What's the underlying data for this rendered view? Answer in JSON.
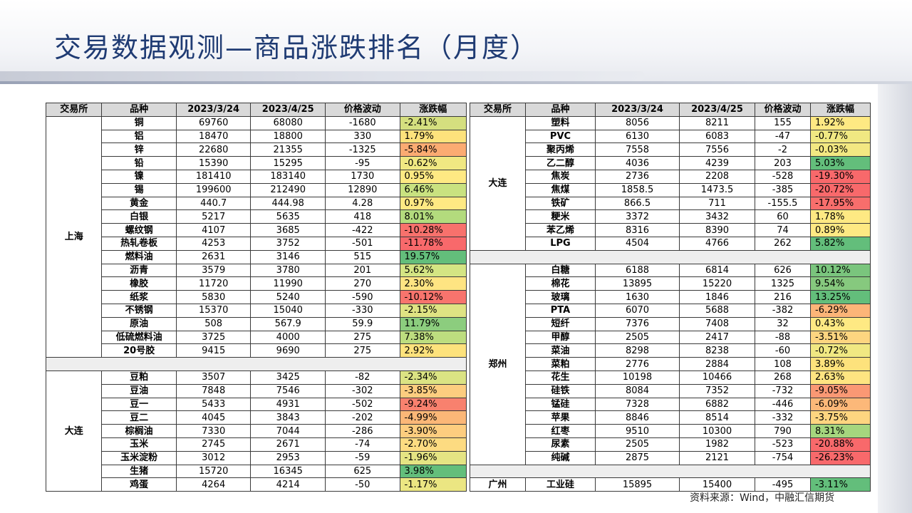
{
  "title": "交易数据观测—商品涨跌排名（月度）",
  "source": "资料来源：Wind，中融汇信期货",
  "headers": [
    "交易所",
    "品种",
    "2023/3/24",
    "2023/4/25",
    "价格波动",
    "涨跌幅"
  ],
  "left": {
    "groups": [
      {
        "exchange": "上海",
        "rows": [
          {
            "p": "铜",
            "a": "69760",
            "b": "68080",
            "d": "-1680",
            "c": "-2.41%",
            "bg": "#d5df7f"
          },
          {
            "p": "铝",
            "a": "18470",
            "b": "18800",
            "d": "330",
            "c": "1.79%",
            "bg": "#fde27c"
          },
          {
            "p": "锌",
            "a": "22680",
            "b": "21355",
            "d": "-1325",
            "c": "-5.84%",
            "bg": "#fbab72"
          },
          {
            "p": "铅",
            "a": "15390",
            "b": "15295",
            "d": "-95",
            "c": "-0.62%",
            "bg": "#f0e882"
          },
          {
            "p": "镍",
            "a": "181410",
            "b": "183140",
            "d": "1730",
            "c": "0.95%",
            "bg": "#fee983"
          },
          {
            "p": "锡",
            "a": "199600",
            "b": "212490",
            "d": "12890",
            "c": "6.46%",
            "bg": "#c9e280"
          },
          {
            "p": "黄金",
            "a": "440.7",
            "b": "444.98",
            "d": "4.28",
            "c": "0.97%",
            "bg": "#fee983"
          },
          {
            "p": "白银",
            "a": "5217",
            "b": "5635",
            "d": "418",
            "c": "8.01%",
            "bg": "#b3db7d"
          },
          {
            "p": "螺纹钢",
            "a": "4107",
            "b": "3685",
            "d": "-422",
            "c": "-10.28%",
            "bg": "#f8716c"
          },
          {
            "p": "热轧卷板",
            "a": "4253",
            "b": "3752",
            "d": "-501",
            "c": "-11.78%",
            "bg": "#f8696b"
          },
          {
            "p": "燃料油",
            "a": "2631",
            "b": "3146",
            "d": "515",
            "c": "19.57%",
            "bg": "#63be7b"
          },
          {
            "p": "沥青",
            "a": "3579",
            "b": "3780",
            "d": "201",
            "c": "5.62%",
            "bg": "#d4e583"
          },
          {
            "p": "橡胶",
            "a": "11720",
            "b": "11990",
            "d": "270",
            "c": "2.30%",
            "bg": "#fee482"
          },
          {
            "p": "纸浆",
            "a": "5830",
            "b": "5240",
            "d": "-590",
            "c": "-10.12%",
            "bg": "#f8746d"
          },
          {
            "p": "不锈钢",
            "a": "15370",
            "b": "15040",
            "d": "-330",
            "c": "-2.15%",
            "bg": "#dfe383"
          },
          {
            "p": "原油",
            "a": "508",
            "b": "567.9",
            "d": "59.9",
            "c": "11.79%",
            "bg": "#8ccd7e"
          },
          {
            "p": "低硫燃料油",
            "a": "3725",
            "b": "4000",
            "d": "275",
            "c": "7.38%",
            "bg": "#bddd7f"
          },
          {
            "p": "20号胶",
            "a": "9415",
            "b": "9690",
            "d": "275",
            "c": "2.92%",
            "bg": "#fde27c"
          }
        ]
      },
      {
        "exchange": "大连",
        "rows": [
          {
            "p": "豆粕",
            "a": "3507",
            "b": "3425",
            "d": "-82",
            "c": "-2.34%",
            "bg": "#dbe383"
          },
          {
            "p": "豆油",
            "a": "7848",
            "b": "7546",
            "d": "-302",
            "c": "-3.85%",
            "bg": "#fdcd7f"
          },
          {
            "p": "豆一",
            "a": "5433",
            "b": "4931",
            "d": "-502",
            "c": "-9.24%",
            "bg": "#f8816e"
          },
          {
            "p": "豆二",
            "a": "4045",
            "b": "3843",
            "d": "-202",
            "c": "-4.99%",
            "bg": "#fbb777"
          },
          {
            "p": "棕榈油",
            "a": "7330",
            "b": "7044",
            "d": "-286",
            "c": "-3.90%",
            "bg": "#fdcd7f"
          },
          {
            "p": "玉米",
            "a": "2745",
            "b": "2671",
            "d": "-74",
            "c": "-2.70%",
            "bg": "#fddb81"
          },
          {
            "p": "玉米淀粉",
            "a": "3012",
            "b": "2953",
            "d": "-59",
            "c": "-1.96%",
            "bg": "#e5e483"
          },
          {
            "p": "生猪",
            "a": "15720",
            "b": "16345",
            "d": "625",
            "c": "3.98%",
            "bg": "#63be7b"
          },
          {
            "p": "鸡蛋",
            "a": "4264",
            "b": "4214",
            "d": "-50",
            "c": "-1.17%",
            "bg": "#ebe682"
          }
        ]
      }
    ]
  },
  "right": {
    "groups": [
      {
        "exchange": "大连",
        "rows": [
          {
            "p": "塑料",
            "a": "8056",
            "b": "8211",
            "d": "155",
            "c": "1.92%",
            "bg": "#fee983"
          },
          {
            "p": "PVC",
            "a": "6130",
            "b": "6083",
            "d": "-47",
            "c": "-0.77%",
            "bg": "#f0e882"
          },
          {
            "p": "聚丙烯",
            "a": "7558",
            "b": "7556",
            "d": "-2",
            "c": "-0.03%",
            "bg": "#f3e882"
          },
          {
            "p": "乙二醇",
            "a": "4036",
            "b": "4239",
            "d": "203",
            "c": "5.03%",
            "bg": "#63be7b"
          },
          {
            "p": "焦炭",
            "a": "2736",
            "b": "2208",
            "d": "-528",
            "c": "-19.30%",
            "bg": "#f8696b"
          },
          {
            "p": "焦煤",
            "a": "1858.5",
            "b": "1473.5",
            "d": "-385",
            "c": "-20.72%",
            "bg": "#f8696b"
          },
          {
            "p": "铁矿",
            "a": "866.5",
            "b": "711",
            "d": "-155.5",
            "c": "-17.95%",
            "bg": "#f86e6c"
          },
          {
            "p": "粳米",
            "a": "3372",
            "b": "3432",
            "d": "60",
            "c": "1.78%",
            "bg": "#fee983"
          },
          {
            "p": "苯乙烯",
            "a": "8316",
            "b": "8390",
            "d": "74",
            "c": "0.89%",
            "bg": "#fee983"
          },
          {
            "p": "LPG",
            "a": "4504",
            "b": "4766",
            "d": "262",
            "c": "5.82%",
            "bg": "#63be7b"
          }
        ]
      },
      {
        "exchange": "郑州",
        "rows": [
          {
            "p": "白糖",
            "a": "6188",
            "b": "6814",
            "d": "626",
            "c": "10.12%",
            "bg": "#7ac57d"
          },
          {
            "p": "棉花",
            "a": "13895",
            "b": "15220",
            "d": "1325",
            "c": "9.54%",
            "bg": "#86c97e"
          },
          {
            "p": "玻璃",
            "a": "1630",
            "b": "1846",
            "d": "216",
            "c": "13.25%",
            "bg": "#63be7b"
          },
          {
            "p": "PTA",
            "a": "6070",
            "b": "5688",
            "d": "-382",
            "c": "-6.29%",
            "bg": "#fcb578"
          },
          {
            "p": "短纤",
            "a": "7376",
            "b": "7408",
            "d": "32",
            "c": "0.43%",
            "bg": "#fee983"
          },
          {
            "p": "甲醇",
            "a": "2505",
            "b": "2417",
            "d": "-88",
            "c": "-3.51%",
            "bg": "#fdd580"
          },
          {
            "p": "菜油",
            "a": "8298",
            "b": "8238",
            "d": "-60",
            "c": "-0.72%",
            "bg": "#f0e882"
          },
          {
            "p": "菜粕",
            "a": "2776",
            "b": "2884",
            "d": "108",
            "c": "3.89%",
            "bg": "#fde27c"
          },
          {
            "p": "花生",
            "a": "10198",
            "b": "10466",
            "d": "268",
            "c": "2.63%",
            "bg": "#fee481"
          },
          {
            "p": "硅铁",
            "a": "8084",
            "b": "7352",
            "d": "-732",
            "c": "-9.05%",
            "bg": "#fa9874"
          },
          {
            "p": "锰硅",
            "a": "7328",
            "b": "6882",
            "d": "-446",
            "c": "-6.09%",
            "bg": "#fcb879"
          },
          {
            "p": "苹果",
            "a": "8846",
            "b": "8514",
            "d": "-332",
            "c": "-3.75%",
            "bg": "#fdd580"
          },
          {
            "p": "红枣",
            "a": "9510",
            "b": "10300",
            "d": "790",
            "c": "8.31%",
            "bg": "#a5d67e"
          },
          {
            "p": "尿素",
            "a": "2505",
            "b": "1982",
            "d": "-523",
            "c": "-20.88%",
            "bg": "#f8696b"
          },
          {
            "p": "纯碱",
            "a": "2875",
            "b": "2121",
            "d": "-754",
            "c": "-26.23%",
            "bg": "#f8696b"
          }
        ]
      },
      {
        "exchange": "广州",
        "rows": [
          {
            "p": "工业硅",
            "a": "15895",
            "b": "15400",
            "d": "-495",
            "c": "-3.11%",
            "bg": "#63be7b"
          }
        ]
      }
    ]
  }
}
